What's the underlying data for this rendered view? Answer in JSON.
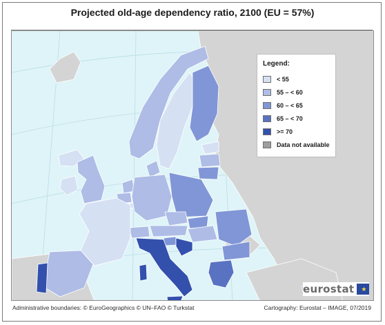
{
  "title": "Projected old-age dependency ratio, 2100 (EU = 57%)",
  "legend": {
    "title": "Legend:",
    "items": [
      {
        "label": "< 55",
        "color": "#d5e0f3"
      },
      {
        "label": "55 – < 60",
        "color": "#aebce6"
      },
      {
        "label": "60 – < 65",
        "color": "#8196d6"
      },
      {
        "label": "65 – < 70",
        "color": "#5a72c2"
      },
      {
        "label": ">= 70",
        "color": "#3350ad"
      },
      {
        "label": "Data not available",
        "color": "#9e9e9e"
      }
    ]
  },
  "colors": {
    "sea": "#dff4f8",
    "non_eu_land": "#d4d4d4",
    "border": "#ffffff",
    "graticule": "#b8dde6"
  },
  "regions": {
    "lt55": [
      "Ireland",
      "France",
      "Sweden",
      "Luxembourg",
      "Estonia",
      "Finland (south)"
    ],
    "55to60": [
      "Norway",
      "Iceland",
      "United Kingdom",
      "Belgium",
      "Netherlands",
      "Germany",
      "Denmark",
      "Austria",
      "Hungary",
      "Spain",
      "Cyprus",
      "Latvia",
      "Czechia",
      "Switzerland"
    ],
    "60to65": [
      "Finland",
      "Lithuania",
      "Poland",
      "Slovakia",
      "Romania",
      "Bulgaria",
      "Slovenia",
      "Malta",
      "Lichtenstein"
    ],
    "65to70": [
      "Greece"
    ],
    "ge70": [
      "Portugal",
      "Italy",
      "Croatia"
    ]
  },
  "logo": {
    "text": "eurostat",
    "flag_stars": "★"
  },
  "footer": {
    "left": "Administrative boundaries: © EuroGeographics © UN–FAO © Turkstat",
    "right": "Cartography: Eurostat – IMAGE, 07/2019"
  }
}
